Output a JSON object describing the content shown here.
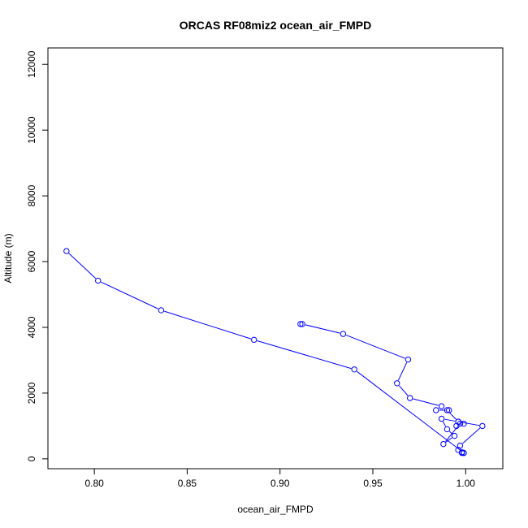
{
  "chart_data": {
    "type": "line",
    "title": "ORCAS RF08miz2 ocean_air_FMPD",
    "xlabel": "ocean_air_FMPD",
    "ylabel": "Altitude (m)",
    "xlim": [
      0.775,
      1.02
    ],
    "ylim": [
      -300,
      12500
    ],
    "xticks": [
      {
        "value": 0.8,
        "label": "0.80"
      },
      {
        "value": 0.85,
        "label": "0.85"
      },
      {
        "value": 0.9,
        "label": "0.90"
      },
      {
        "value": 0.95,
        "label": "0.95"
      },
      {
        "value": 1.0,
        "label": "1.00"
      }
    ],
    "yticks": [
      {
        "value": 0,
        "label": "0"
      },
      {
        "value": 2000,
        "label": "2000"
      },
      {
        "value": 4000,
        "label": "4000"
      },
      {
        "value": 6000,
        "label": "6000"
      },
      {
        "value": 8000,
        "label": "8000"
      },
      {
        "value": 10000,
        "label": "10000"
      },
      {
        "value": 12000,
        "label": "12000"
      }
    ],
    "grid": false,
    "series": [
      {
        "color": "#0000ff",
        "marker": "open-circle",
        "x": [
          0.911,
          0.912,
          0.934,
          0.969,
          0.963,
          0.97,
          0.987,
          0.984,
          0.991,
          0.99,
          0.996,
          0.987,
          0.99,
          0.994,
          0.988,
          0.997,
          0.999,
          0.995,
          0.996,
          1.009,
          0.997,
          0.996,
          0.998,
          0.999,
          0.998,
          0.999,
          0.94,
          0.886,
          0.836,
          0.802,
          0.785
        ],
        "y": [
          4100,
          4100,
          3800,
          3020,
          2300,
          1850,
          1600,
          1480,
          1480,
          1480,
          1130,
          1220,
          900,
          700,
          450,
          1070,
          1070,
          1000,
          1130,
          1000,
          400,
          270,
          200,
          180,
          180,
          180,
          2720,
          3620,
          4520,
          5420,
          6320
        ]
      }
    ]
  }
}
